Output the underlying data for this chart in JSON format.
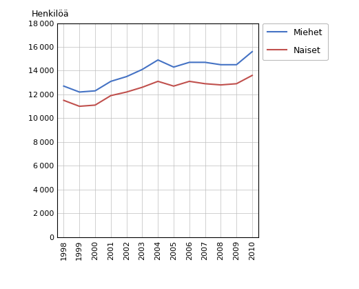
{
  "years": [
    1998,
    1999,
    2000,
    2001,
    2002,
    2003,
    2004,
    2005,
    2006,
    2007,
    2008,
    2009,
    2010
  ],
  "miehet": [
    12700,
    12200,
    12300,
    13100,
    13500,
    14100,
    14900,
    14300,
    14700,
    14700,
    14500,
    14500,
    15600
  ],
  "naiset": [
    11500,
    11000,
    11100,
    11900,
    12200,
    12600,
    13100,
    12700,
    13100,
    12900,
    12800,
    12900,
    13600
  ],
  "miehet_color": "#4472C4",
  "naiset_color": "#C0504D",
  "ylabel": "Henkilöä",
  "ylim": [
    0,
    18000
  ],
  "ytick_step": 2000,
  "legend_miehet": "Miehet",
  "legend_naiset": "Naiset",
  "background_color": "#FFFFFF",
  "grid_color": "#BEBEBE",
  "spine_color": "#000000",
  "figsize": [
    5.21,
    4.19
  ],
  "dpi": 100
}
